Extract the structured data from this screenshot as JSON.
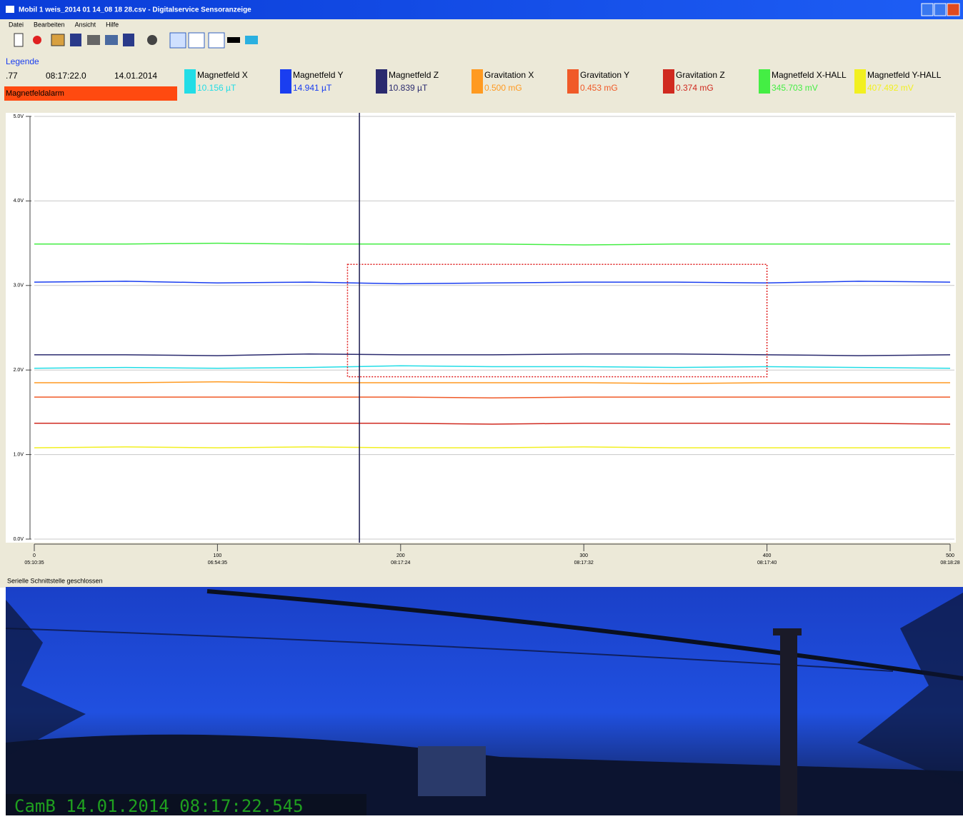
{
  "window": {
    "title": "Mobil 1 weis_2014 01 14_08 18 28.csv - Digitalservice Sensoranzeige"
  },
  "menu": [
    "Datei",
    "Bearbeiten",
    "Ansicht",
    "Hilfe"
  ],
  "legend_panel": {
    "title": "Legende",
    "value": ".77",
    "time": "08:17:22.0",
    "date": "14.01.2014",
    "alarm": "Magnetfeldalarm"
  },
  "chart_data": {
    "type": "line",
    "x": [
      0,
      50,
      100,
      150,
      200,
      250,
      300,
      350,
      400,
      450,
      500
    ],
    "xlim": [
      0,
      500
    ],
    "xticks": [
      0,
      100,
      200,
      300,
      400,
      500
    ],
    "xtick_times": [
      "05:10:35",
      "06:54:35",
      "08:17:24",
      "08:17:32",
      "08:17:40",
      "08:18:28"
    ],
    "ylim": [
      0,
      5
    ],
    "yticks": [
      {
        "value": 0,
        "label": "0.0V"
      },
      {
        "value": 1,
        "label": "1.0V"
      },
      {
        "value": 2,
        "label": "2.0V"
      },
      {
        "value": 3,
        "label": "3.0V"
      },
      {
        "value": 4,
        "label": "4.0V"
      },
      {
        "value": 5,
        "label": "5.0V"
      }
    ],
    "grid": true,
    "cursor_x": 177.5,
    "highlight_box": {
      "xlim": [
        171,
        400
      ],
      "ylim": [
        1.92,
        3.25
      ]
    },
    "series": [
      {
        "name": "Magnetfeld X",
        "color": "#22dde6",
        "reading": "10.156 µT",
        "values": [
          2.02,
          2.03,
          2.02,
          2.03,
          2.05,
          2.04,
          2.04,
          2.03,
          2.04,
          2.03,
          2.02
        ]
      },
      {
        "name": "Magnetfeld Y",
        "color": "#1a3ef0",
        "reading": "14.941 µT",
        "values": [
          3.04,
          3.05,
          3.03,
          3.04,
          3.02,
          3.03,
          3.04,
          3.04,
          3.03,
          3.05,
          3.04
        ]
      },
      {
        "name": "Magnetfeld Z",
        "color": "#2a2a6e",
        "reading": "10.839 µT",
        "values": [
          2.18,
          2.18,
          2.17,
          2.19,
          2.18,
          2.18,
          2.19,
          2.19,
          2.18,
          2.17,
          2.18
        ]
      },
      {
        "name": "Gravitation X",
        "color": "#ff9a20",
        "reading": "0.500 mG",
        "values": [
          1.85,
          1.85,
          1.86,
          1.85,
          1.85,
          1.85,
          1.85,
          1.84,
          1.85,
          1.85,
          1.85
        ]
      },
      {
        "name": "Gravitation Y",
        "color": "#f05a28",
        "reading": "0.453 mG",
        "values": [
          1.68,
          1.68,
          1.68,
          1.68,
          1.68,
          1.67,
          1.68,
          1.68,
          1.68,
          1.68,
          1.68
        ]
      },
      {
        "name": "Gravitation Z",
        "color": "#d02a20",
        "reading": "0.374 mG",
        "values": [
          1.37,
          1.37,
          1.37,
          1.37,
          1.37,
          1.36,
          1.37,
          1.37,
          1.37,
          1.37,
          1.36
        ]
      },
      {
        "name": "Magnetfeld X-HALL",
        "color": "#44ee44",
        "reading": "345.703 mV",
        "values": [
          3.49,
          3.49,
          3.5,
          3.49,
          3.49,
          3.49,
          3.48,
          3.49,
          3.49,
          3.49,
          3.49
        ]
      },
      {
        "name": "Magnetfeld Y-HALL",
        "color": "#f2f020",
        "reading": "407.492 mV",
        "values": [
          1.08,
          1.09,
          1.08,
          1.09,
          1.08,
          1.08,
          1.09,
          1.08,
          1.08,
          1.08,
          1.08
        ]
      }
    ]
  },
  "status": "Serielle Schnittstelle geschlossen",
  "camera": {
    "caption": "CamB 14.01.2014 08:17:22.545"
  }
}
